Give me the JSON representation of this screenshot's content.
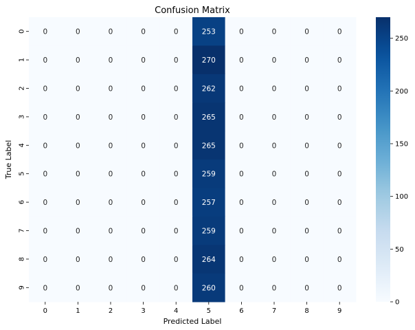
{
  "chart_data": {
    "type": "heatmap",
    "title": "Confusion Matrix",
    "xlabel": "Predicted Label",
    "ylabel": "True Label",
    "x_categories": [
      "0",
      "1",
      "2",
      "3",
      "4",
      "5",
      "6",
      "7",
      "8",
      "9"
    ],
    "y_categories": [
      "0",
      "1",
      "2",
      "3",
      "4",
      "5",
      "6",
      "7",
      "8",
      "9"
    ],
    "values": [
      [
        0,
        0,
        0,
        0,
        0,
        253,
        0,
        0,
        0,
        0
      ],
      [
        0,
        0,
        0,
        0,
        0,
        270,
        0,
        0,
        0,
        0
      ],
      [
        0,
        0,
        0,
        0,
        0,
        262,
        0,
        0,
        0,
        0
      ],
      [
        0,
        0,
        0,
        0,
        0,
        265,
        0,
        0,
        0,
        0
      ],
      [
        0,
        0,
        0,
        0,
        0,
        265,
        0,
        0,
        0,
        0
      ],
      [
        0,
        0,
        0,
        0,
        0,
        259,
        0,
        0,
        0,
        0
      ],
      [
        0,
        0,
        0,
        0,
        0,
        257,
        0,
        0,
        0,
        0
      ],
      [
        0,
        0,
        0,
        0,
        0,
        259,
        0,
        0,
        0,
        0
      ],
      [
        0,
        0,
        0,
        0,
        0,
        264,
        0,
        0,
        0,
        0
      ],
      [
        0,
        0,
        0,
        0,
        0,
        260,
        0,
        0,
        0,
        0
      ]
    ],
    "colorbar": {
      "colormap": "Blues",
      "range": [
        0,
        270
      ],
      "ticks": [
        "0",
        "50",
        "100",
        "150",
        "200",
        "250"
      ]
    },
    "grid": false
  }
}
